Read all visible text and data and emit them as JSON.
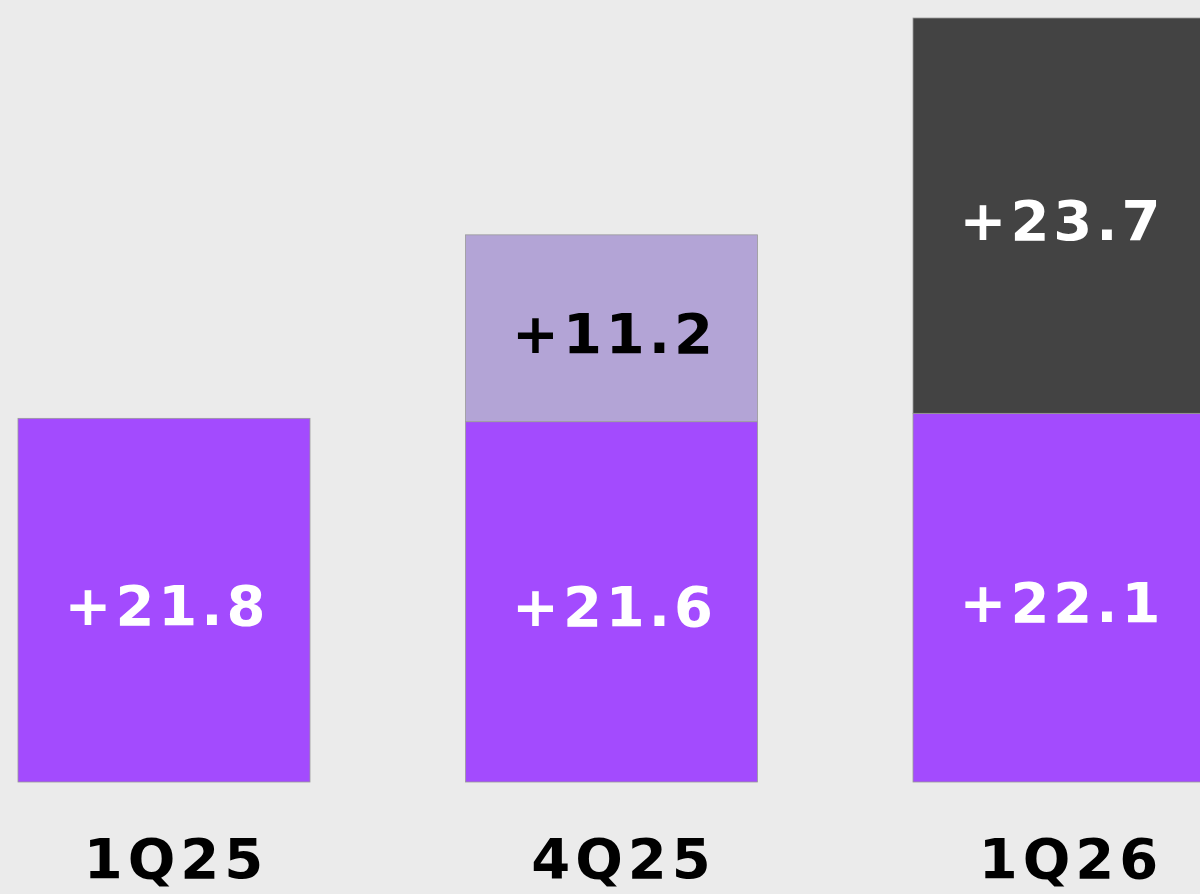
{
  "chart_data": {
    "type": "bar",
    "stacked": true,
    "categories": [
      "1Q25",
      "4Q25",
      "1Q26"
    ],
    "series": [
      {
        "color": "#a34bfe",
        "values": [
          21.8,
          21.6,
          22.1
        ],
        "value_labels": [
          "+21.8",
          "+21.6",
          "+22.1"
        ]
      },
      {
        "color": "#b3a4d6",
        "values": [
          null,
          11.2,
          null
        ],
        "value_labels": [
          null,
          "+11.2",
          null
        ]
      },
      {
        "color": "#434343",
        "values": [
          null,
          null,
          23.7
        ],
        "value_labels": [
          null,
          null,
          "+23.7"
        ]
      }
    ]
  }
}
